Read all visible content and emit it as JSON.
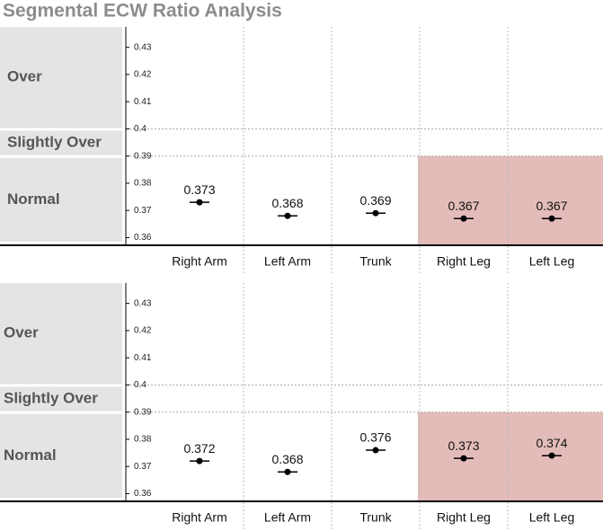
{
  "title": "Segmental ECW Ratio Analysis",
  "chart_data": [
    {
      "type": "dot",
      "categories": [
        "Right Arm",
        "Left Arm",
        "Trunk",
        "Right Leg",
        "Left Leg"
      ],
      "values": [
        0.373,
        0.368,
        0.369,
        0.367,
        0.367
      ],
      "ylim": [
        0.3575,
        0.4375
      ],
      "yticks": [
        0.36,
        0.37,
        0.38,
        0.39,
        0.4,
        0.41,
        0.42,
        0.43
      ],
      "bands": [
        {
          "label": "Over",
          "min": 0.4
        },
        {
          "label": "Slightly Over",
          "min": 0.39
        },
        {
          "label": "Normal"
        }
      ],
      "highlight": [
        false,
        false,
        false,
        true,
        true
      ],
      "highlight_color": "#e3bcb9",
      "color": "#000000"
    },
    {
      "type": "dot",
      "categories": [
        "Right Arm",
        "Left Arm",
        "Trunk",
        "Right Leg",
        "Left Leg"
      ],
      "values": [
        0.372,
        0.368,
        0.376,
        0.373,
        0.374
      ],
      "ylim": [
        0.3575,
        0.4375
      ],
      "yticks": [
        0.36,
        0.37,
        0.38,
        0.39,
        0.4,
        0.41,
        0.42,
        0.43
      ],
      "bands": [
        {
          "label": "Over",
          "min": 0.4
        },
        {
          "label": "Slightly Over",
          "min": 0.39
        },
        {
          "label": "Normal"
        }
      ],
      "highlight": [
        false,
        false,
        false,
        true,
        true
      ],
      "highlight_color": "#e3bcb9",
      "color": "#000000"
    }
  ]
}
